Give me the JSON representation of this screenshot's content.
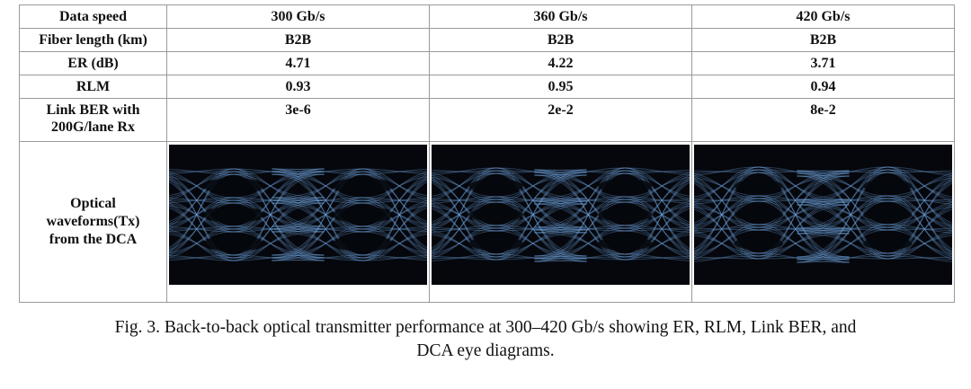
{
  "table": {
    "header": {
      "label": "Data speed",
      "cols": [
        "300 Gb/s",
        "360 Gb/s",
        "420 Gb/s"
      ]
    },
    "rows": [
      {
        "label": "Fiber length (km)",
        "values": [
          "B2B",
          "B2B",
          "B2B"
        ]
      },
      {
        "label": "ER (dB)",
        "values": [
          "4.71",
          "4.22",
          "3.71"
        ]
      },
      {
        "label": "RLM",
        "values": [
          "0.93",
          "0.95",
          "0.94"
        ]
      },
      {
        "label_line1": "Link BER with",
        "label_line2": "200G/lane Rx",
        "values": [
          "3e-6",
          "2e-2",
          "8e-2"
        ]
      }
    ],
    "waveform_row": {
      "label_line1": "Optical",
      "label_line2": "waveforms(Tx)",
      "label_line3": "from the DCA"
    }
  },
  "caption": {
    "line1": "Fig. 3. Back-to-back optical transmitter performance at 300–420 Gb/s showing ER, RLM, Link BER, and",
    "line2": "DCA eye diagrams."
  },
  "colors": {
    "eye_background": "#05070c",
    "eye_trace": "#6fa3de",
    "border": "#9a9a9a"
  }
}
